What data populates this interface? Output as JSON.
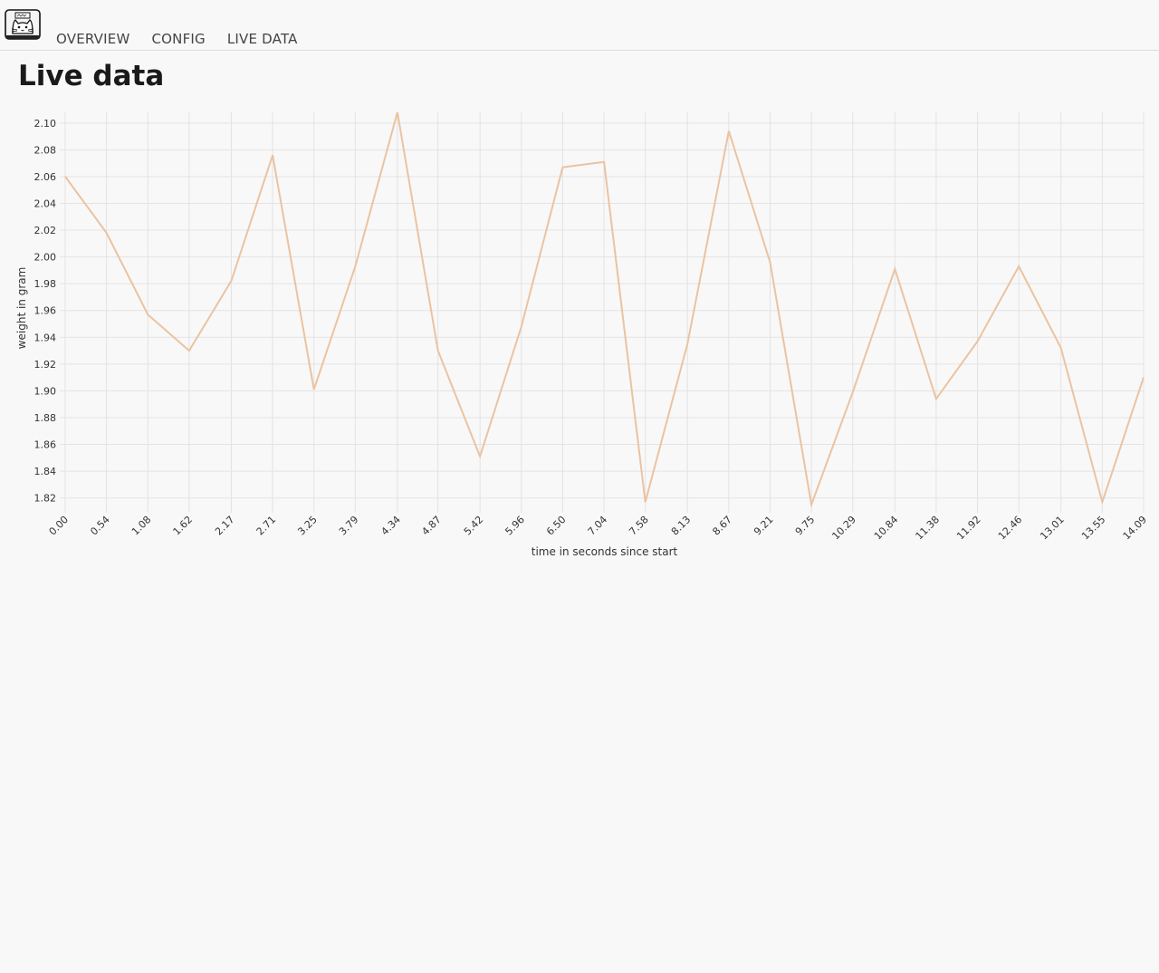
{
  "nav": {
    "items": [
      {
        "label": "OVERVIEW"
      },
      {
        "label": "CONFIG"
      },
      {
        "label": "LIVE DATA"
      }
    ]
  },
  "page": {
    "title": "Live data"
  },
  "icons": {
    "logo": "cat-scale-logo-icon"
  },
  "chart_data": {
    "type": "line",
    "title": "",
    "xlabel": "time in seconds since start",
    "ylabel": "weight in gram",
    "x": [
      0.0,
      0.54,
      1.08,
      1.62,
      2.17,
      2.71,
      3.25,
      3.79,
      4.34,
      4.87,
      5.42,
      5.96,
      6.5,
      7.04,
      7.58,
      8.13,
      8.67,
      9.21,
      9.75,
      10.29,
      10.84,
      11.38,
      11.92,
      12.46,
      13.01,
      13.55,
      14.09
    ],
    "x_tick_labels": [
      "0.00",
      "0.54",
      "1.08",
      "1.62",
      "2.17",
      "2.71",
      "3.25",
      "3.79",
      "4.34",
      "4.87",
      "5.42",
      "5.96",
      "6.50",
      "7.04",
      "7.58",
      "8.13",
      "8.67",
      "9.21",
      "9.75",
      "10.29",
      "10.84",
      "11.38",
      "11.92",
      "12.46",
      "13.01",
      "13.55",
      "14.09"
    ],
    "series": [
      {
        "values": [
          2.06,
          2.018,
          1.957,
          1.93,
          1.982,
          2.076,
          1.901,
          1.993,
          2.108,
          1.93,
          1.851,
          1.948,
          2.067,
          2.071,
          1.817,
          1.935,
          2.094,
          1.996,
          1.815,
          1.899,
          1.991,
          1.894,
          1.937,
          1.993,
          1.932,
          1.817,
          1.91
        ],
        "color": "#ebc3a1"
      }
    ],
    "y_ticks": [
      "1.82",
      "1.84",
      "1.86",
      "1.88",
      "1.90",
      "1.92",
      "1.94",
      "1.96",
      "1.98",
      "2.00",
      "2.02",
      "2.04",
      "2.06",
      "2.08",
      "2.10"
    ],
    "ylim": [
      1.813,
      2.108
    ],
    "grid": true,
    "legend": "none"
  }
}
